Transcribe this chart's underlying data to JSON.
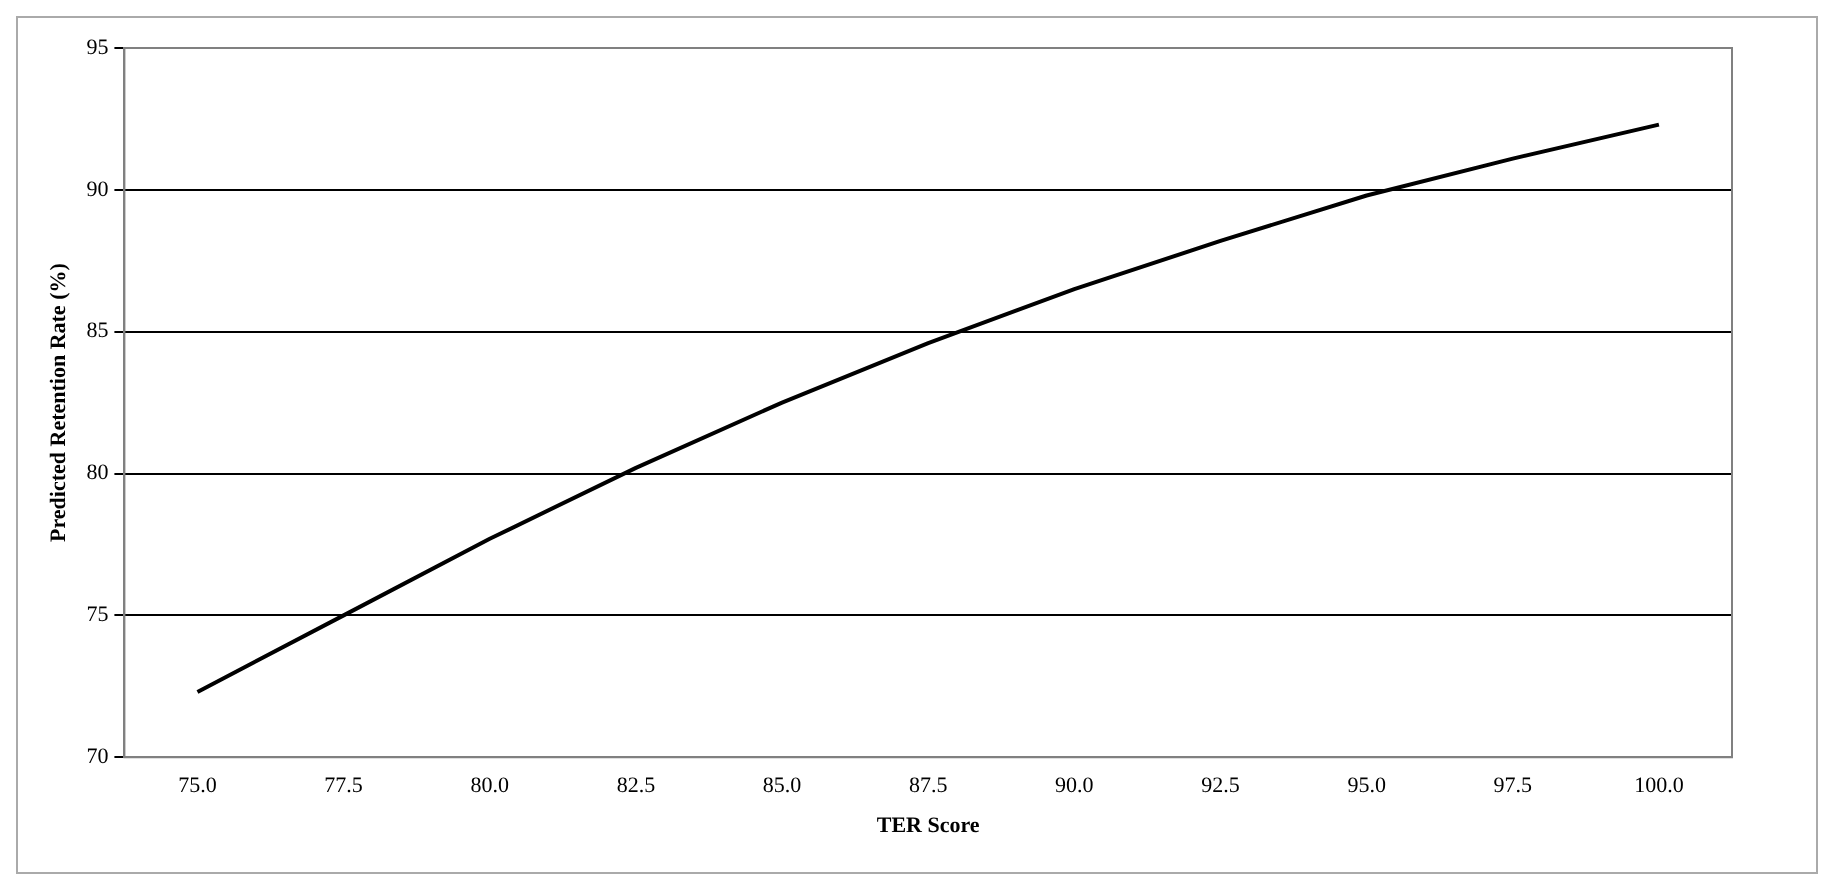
{
  "chart_data": {
    "type": "line",
    "xlabel": "TER Score",
    "ylabel": "Predicted Retention Rate (%)",
    "categories": [
      "75.0",
      "77.5",
      "80.0",
      "82.5",
      "85.0",
      "87.5",
      "90.0",
      "92.5",
      "95.0",
      "97.5",
      "100.0"
    ],
    "series": [
      {
        "color": "#000000",
        "values": [
          72.3,
          75.0,
          77.7,
          80.2,
          82.5,
          84.6,
          86.5,
          88.2,
          89.8,
          91.1,
          92.3
        ]
      }
    ],
    "ylim": [
      70,
      95
    ],
    "yticks": [
      70,
      75,
      80,
      85,
      90,
      95
    ],
    "grid": "y",
    "legend": false,
    "marker": "none",
    "line_style": "solid"
  }
}
